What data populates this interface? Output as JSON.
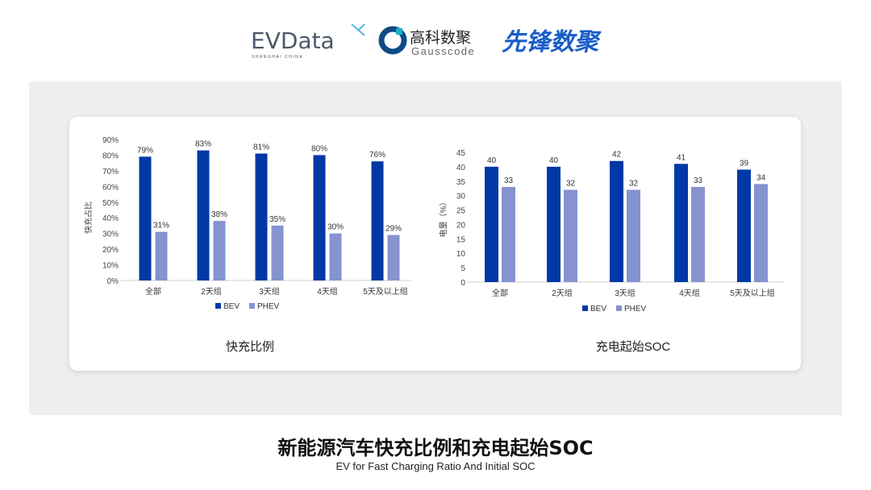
{
  "logos": {
    "evdata": "EVData",
    "evdata_sub": "SHANGHAI CHINA",
    "gauss_cn": "高科数聚",
    "gauss_en": "Gausscode",
    "xianfeng": "先锋数聚"
  },
  "footer": {
    "title": "新能源汽车快充比例和充电起始SOC",
    "subtitle": "EV for Fast Charging Ratio And Initial SOC"
  },
  "colors": {
    "BEV": "#0039a6",
    "PHEV": "#8593cf"
  },
  "chart_data": [
    {
      "type": "bar",
      "title": "快充比例",
      "ylabel": "快充占比",
      "categories": [
        "全部",
        "2天组",
        "3天组",
        "4天组",
        "5天及以上组"
      ],
      "ylim": [
        0,
        90
      ],
      "yticks": [
        "0%",
        "10%",
        "20%",
        "30%",
        "40%",
        "50%",
        "60%",
        "70%",
        "80%",
        "90%"
      ],
      "legend": "bottom",
      "series": [
        {
          "name": "BEV",
          "values": [
            79,
            83,
            81,
            80,
            76
          ],
          "labels": [
            "79%",
            "83%",
            "81%",
            "80%",
            "76%"
          ]
        },
        {
          "name": "PHEV",
          "values": [
            31,
            38,
            35,
            30,
            29
          ],
          "labels": [
            "31%",
            "38%",
            "35%",
            "30%",
            "29%"
          ]
        }
      ]
    },
    {
      "type": "bar",
      "title": "充电起始SOC",
      "ylabel": "电量（%）",
      "categories": [
        "全部",
        "2天组",
        "3天组",
        "4天组",
        "5天及以上组"
      ],
      "ylim": [
        0,
        45
      ],
      "yticks": [
        "0",
        "5",
        "10",
        "15",
        "20",
        "25",
        "30",
        "35",
        "40",
        "45"
      ],
      "legend": "bottom",
      "series": [
        {
          "name": "BEV",
          "values": [
            40,
            40,
            42,
            41,
            39
          ],
          "labels": [
            "40",
            "40",
            "42",
            "41",
            "39"
          ]
        },
        {
          "name": "PHEV",
          "values": [
            33,
            32,
            32,
            33,
            34
          ],
          "labels": [
            "33",
            "32",
            "32",
            "33",
            "34"
          ]
        }
      ]
    }
  ]
}
